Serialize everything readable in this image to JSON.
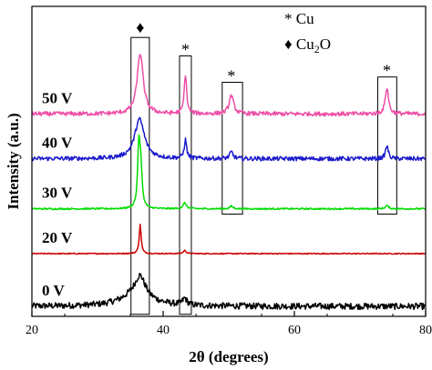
{
  "chart_data": {
    "type": "line",
    "xlabel": "2θ (degrees)",
    "ylabel": "Intensity (a.u.)",
    "xlim": [
      20,
      80
    ],
    "xticks": [
      "20",
      "40",
      "60",
      "80"
    ],
    "y_ticks_shown": false,
    "legend": [
      {
        "symbol": "*",
        "label": "Cu"
      },
      {
        "symbol": "♦",
        "label": "Cu2O",
        "label_main": "Cu",
        "label_sub": "2",
        "label_end": "O"
      }
    ],
    "legend_position": "top-right",
    "series": [
      {
        "name": "0 V",
        "color": "#000000",
        "baseline": 0.0,
        "noise": 0.012,
        "peaks": [
          {
            "x": 36.5,
            "height": 0.07,
            "width": 0.9
          },
          {
            "x": 36.0,
            "height": 0.05,
            "width": 2.6
          },
          {
            "x": 43.3,
            "height": 0.025,
            "width": 0.4
          }
        ]
      },
      {
        "name": "20 V",
        "color": "#cc0000",
        "baseline": 0.2,
        "noise": 0.002,
        "peaks": [
          {
            "x": 36.5,
            "height": 0.11,
            "width": 0.18
          },
          {
            "x": 43.3,
            "height": 0.012,
            "width": 0.25
          }
        ]
      },
      {
        "name": "30 V",
        "color": "#00dd00",
        "baseline": 0.37,
        "noise": 0.003,
        "peaks": [
          {
            "x": 36.3,
            "height": 0.23,
            "width": 0.22
          },
          {
            "x": 36.6,
            "height": 0.14,
            "width": 0.22
          },
          {
            "x": 43.3,
            "height": 0.022,
            "width": 0.3
          },
          {
            "x": 50.4,
            "height": 0.01,
            "width": 0.3
          },
          {
            "x": 74.1,
            "height": 0.012,
            "width": 0.3
          }
        ]
      },
      {
        "name": "40 V",
        "color": "#1a1acc",
        "baseline": 0.56,
        "noise": 0.008,
        "peaks": [
          {
            "x": 36.4,
            "height": 0.15,
            "width": 0.9
          },
          {
            "x": 43.4,
            "height": 0.07,
            "width": 0.22
          },
          {
            "x": 50.4,
            "height": 0.025,
            "width": 0.3
          },
          {
            "x": 74.1,
            "height": 0.05,
            "width": 0.25
          }
        ]
      },
      {
        "name": "50 V",
        "color": "#ee4fa7",
        "baseline": 0.73,
        "noise": 0.008,
        "peaks": [
          {
            "x": 36.5,
            "height": 0.23,
            "width": 0.55
          },
          {
            "x": 43.4,
            "height": 0.15,
            "width": 0.22
          },
          {
            "x": 50.4,
            "height": 0.07,
            "width": 0.4
          },
          {
            "x": 74.1,
            "height": 0.1,
            "width": 0.3
          }
        ]
      }
    ],
    "peak_markers": [
      {
        "symbol": "♦",
        "x": 36.5
      },
      {
        "symbol": "*",
        "x": 43.4
      },
      {
        "symbol": "*",
        "x": 50.4
      },
      {
        "symbol": "*",
        "x": 74.1
      }
    ],
    "highlight_boxes": [
      {
        "x_range": [
          35.1,
          37.9
        ],
        "y_range": [
          -0.03,
          1.02
        ]
      },
      {
        "x_range": [
          42.5,
          44.3
        ],
        "y_range": [
          -0.03,
          0.95
        ]
      },
      {
        "x_range": [
          49.0,
          52.1
        ],
        "y_range": [
          0.35,
          0.85
        ]
      },
      {
        "x_range": [
          72.7,
          75.6
        ],
        "y_range": [
          0.35,
          0.87
        ]
      }
    ]
  }
}
